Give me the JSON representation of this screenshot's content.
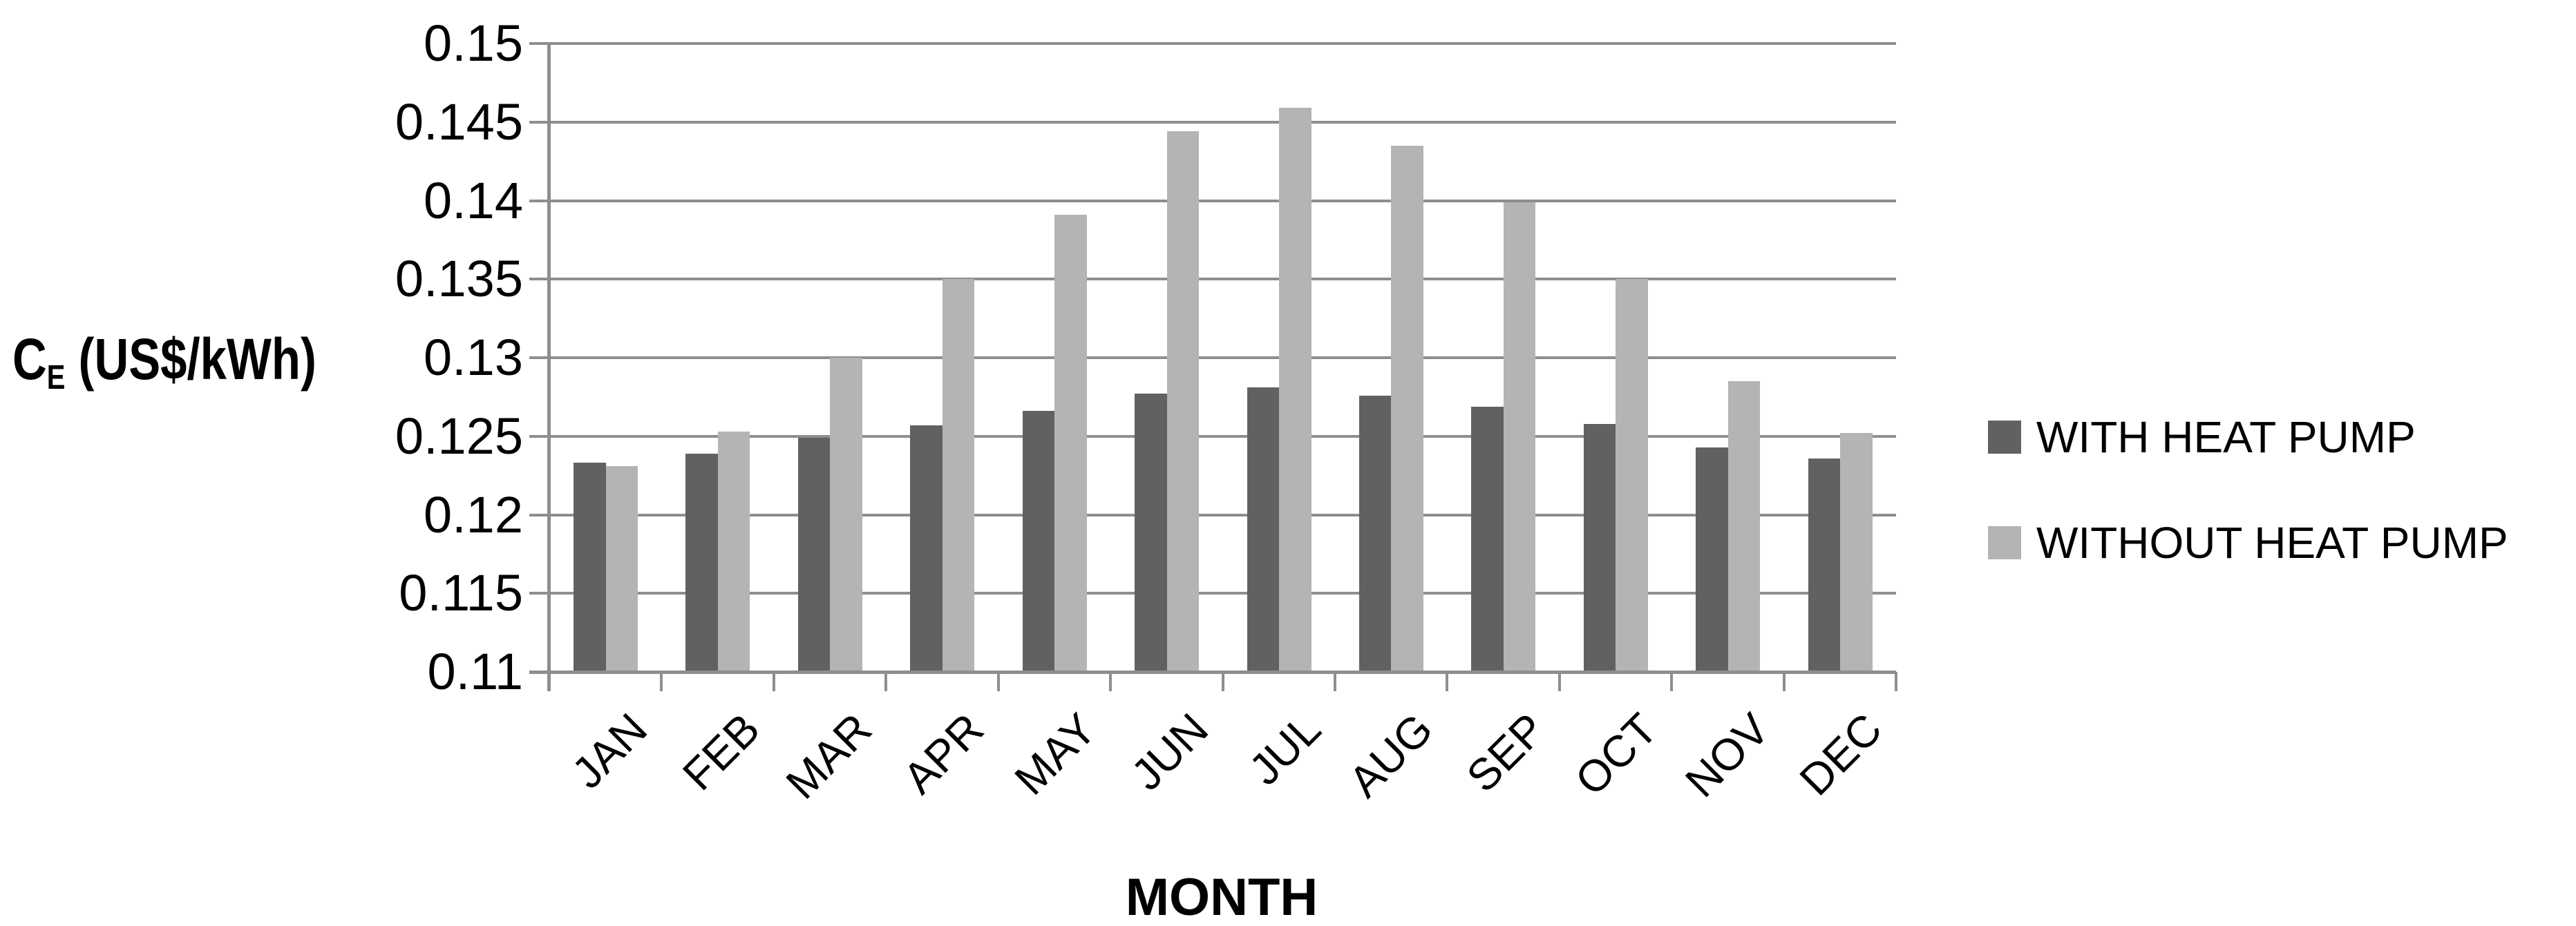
{
  "chart_data": {
    "type": "bar",
    "title": "",
    "categories": [
      "JAN",
      "FEB",
      "MAR",
      "APR",
      "MAY",
      "JUN",
      "JUL",
      "AUG",
      "SEP",
      "OCT",
      "NOV",
      "DEC"
    ],
    "series": [
      {
        "name": "WITH HEAT PUMP",
        "color": "#616161",
        "values": [
          0.1233,
          0.1239,
          0.1249,
          0.1257,
          0.1266,
          0.1277,
          0.1281,
          0.1276,
          0.1269,
          0.1258,
          0.1243,
          0.1236
        ]
      },
      {
        "name": "WITHOUT HEAT PUMP",
        "color": "#b4b4b4",
        "values": [
          0.1231,
          0.1253,
          0.13,
          0.135,
          0.1391,
          0.1444,
          0.1459,
          0.1435,
          0.1399,
          0.135,
          0.1285,
          0.1252
        ]
      }
    ],
    "y_axis": {
      "title_main": "C",
      "title_sub": "E",
      "title_rest": " (US$/kWh)",
      "min": 0.11,
      "max": 0.15,
      "step": 0.005,
      "tick_labels": [
        "0.15",
        "0.145",
        "0.14",
        "0.135",
        "0.13",
        "0.125",
        "0.12",
        "0.115",
        "0.11"
      ]
    },
    "x_axis": {
      "title": "MONTH"
    },
    "ylim": [
      0.11,
      0.15
    ],
    "grid": true,
    "grid_color": "#8e8e8e",
    "legend_position": "right",
    "background_color": "#ffffff",
    "text_color": "#000000"
  }
}
